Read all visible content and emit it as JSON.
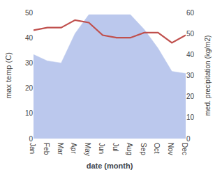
{
  "chart_data": {
    "type": "line",
    "categories": [
      "Jan",
      "Feb",
      "Mar",
      "Apr",
      "May",
      "Jun",
      "Jul",
      "Aug",
      "Sep",
      "Oct",
      "Nov",
      "Dec"
    ],
    "xlabel": "date (month)",
    "ylabel": "max temp (C)",
    "y2label": "med. precipitation (kg/m2)",
    "ylim": [
      0,
      50
    ],
    "yticks": [
      0,
      10,
      20,
      30,
      40,
      50
    ],
    "y2lim": [
      0,
      60
    ],
    "y2ticks": [
      0,
      10,
      20,
      30,
      40,
      50,
      60
    ],
    "grid": false,
    "series": [
      {
        "type": "area",
        "axis": "y2",
        "color": "#bbc8ed",
        "values": [
          40,
          37,
          36,
          50,
          59,
          59,
          59,
          59,
          52,
          43,
          32,
          31
        ]
      },
      {
        "type": "line",
        "color": "#c0504d",
        "values": [
          43,
          44,
          44,
          47,
          46,
          41,
          40,
          40,
          42,
          42,
          38,
          41
        ]
      }
    ]
  }
}
